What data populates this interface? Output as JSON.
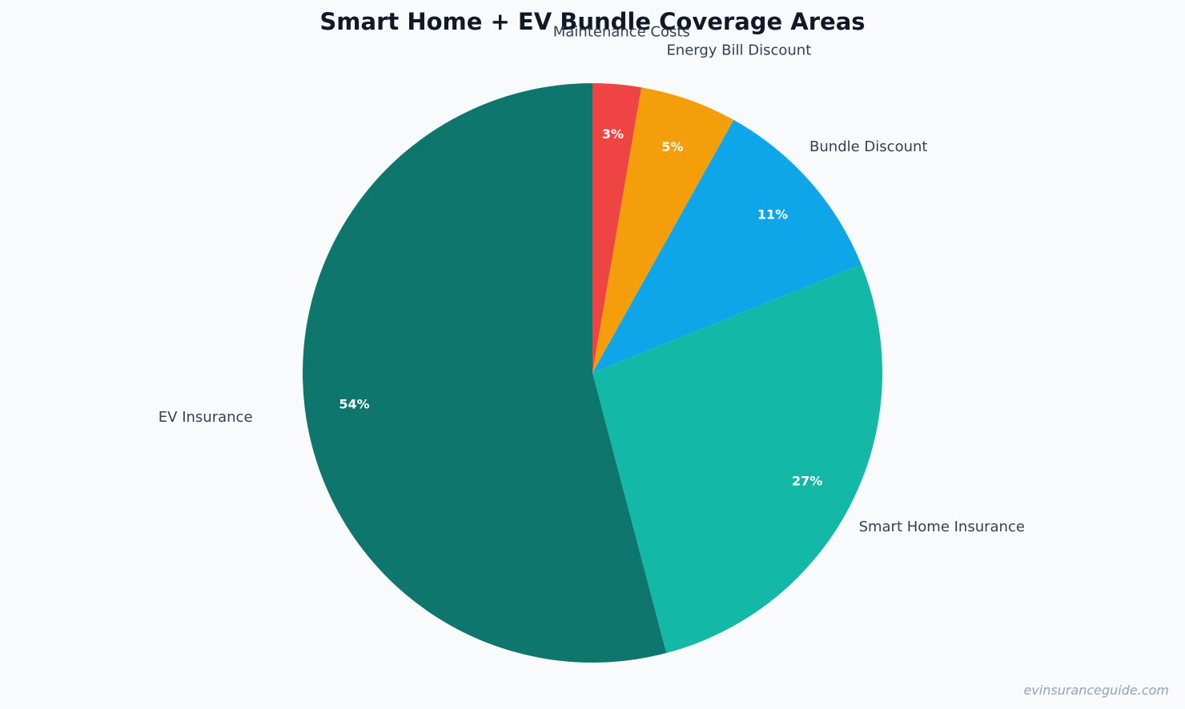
{
  "chart_data": {
    "type": "pie",
    "title": "Smart Home + EV Bundle Coverage Areas",
    "start": "top",
    "direction": "clockwise",
    "slices": [
      {
        "label": "Maintenance Costs",
        "value": 2.7,
        "pct_label": "3%",
        "color": "#ef4444"
      },
      {
        "label": "Energy Bill Discount",
        "value": 5.4,
        "pct_label": "5%",
        "color": "#f59e0b"
      },
      {
        "label": "Bundle Discount",
        "value": 10.8,
        "pct_label": "11%",
        "color": "#0ea5e9"
      },
      {
        "label": "Smart Home Insurance",
        "value": 27.0,
        "pct_label": "27%",
        "color": "#14b8a6"
      },
      {
        "label": "EV Insurance",
        "value": 54.1,
        "pct_label": "54%",
        "color": "#0f766e"
      }
    ]
  },
  "footer": {
    "watermark": "evinsuranceguide.com"
  }
}
